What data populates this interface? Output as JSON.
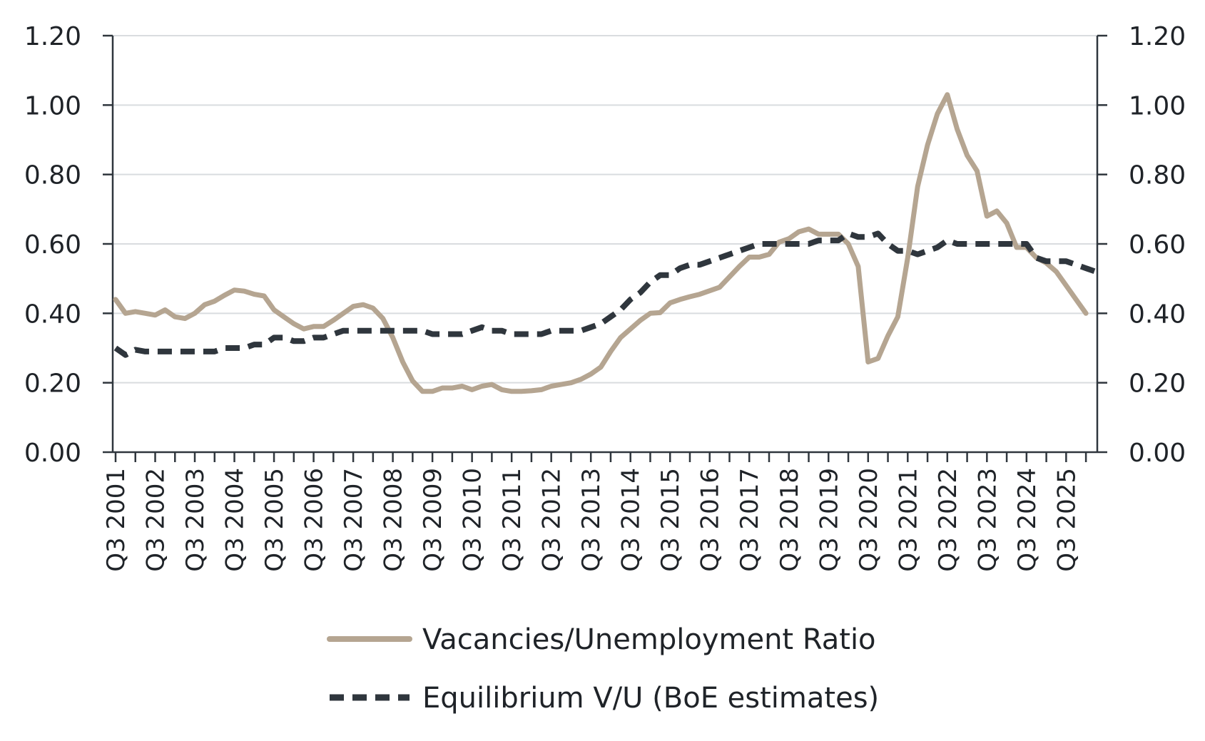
{
  "chart_data": {
    "type": "line",
    "title": "",
    "xlabel": "",
    "ylabel": "",
    "ylim": [
      0,
      1.2
    ],
    "y_ticks": [
      "0.00",
      "0.20",
      "0.40",
      "0.60",
      "0.80",
      "1.00",
      "1.20"
    ],
    "y_tick_values": [
      0,
      0.2,
      0.4,
      0.6,
      0.8,
      1.0,
      1.2
    ],
    "secondary_y_ticks": [
      "0.00",
      "0.20",
      "0.40",
      "0.60",
      "0.80",
      "1.00",
      "1.20"
    ],
    "grid": "horizontal",
    "legend_position": "bottom-center",
    "x_tick_labels": [
      "Q3 2001",
      "Q3 2002",
      "Q3 2003",
      "Q3 2004",
      "Q3 2005",
      "Q3 2006",
      "Q3 2007",
      "Q3 2008",
      "Q3 2009",
      "Q3 2010",
      "Q3 2011",
      "Q3 2012",
      "Q3 2013",
      "Q3 2014",
      "Q3 2015",
      "Q3 2016",
      "Q3 2017",
      "Q3 2018",
      "Q3 2019",
      "Q3 2020",
      "Q3 2021",
      "Q3 2022",
      "Q3 2023",
      "Q3 2024",
      "Q3 2025"
    ],
    "series": [
      {
        "name": "Vacancies/Unemployment Ratio",
        "color": "#b5a591",
        "style": "solid",
        "values": [
          0.44,
          0.4,
          0.405,
          0.4,
          0.395,
          0.41,
          0.39,
          0.385,
          0.4,
          0.425,
          0.435,
          0.452,
          0.467,
          0.464,
          0.455,
          0.45,
          0.41,
          0.39,
          0.37,
          0.355,
          0.362,
          0.362,
          0.38,
          0.4,
          0.42,
          0.425,
          0.415,
          0.385,
          0.33,
          0.26,
          0.205,
          0.175,
          0.175,
          0.185,
          0.185,
          0.19,
          0.18,
          0.19,
          0.195,
          0.18,
          0.175,
          0.175,
          0.177,
          0.18,
          0.19,
          0.195,
          0.2,
          0.21,
          0.225,
          0.245,
          0.29,
          0.33,
          0.355,
          0.38,
          0.4,
          0.402,
          0.43,
          0.44,
          0.448,
          0.455,
          0.465,
          0.475,
          0.505,
          0.535,
          0.562,
          0.562,
          0.57,
          0.605,
          0.615,
          0.635,
          0.643,
          0.628,
          0.628,
          0.628,
          0.6,
          0.535,
          0.26,
          0.27,
          0.335,
          0.39,
          0.56,
          0.765,
          0.885,
          0.975,
          1.03,
          0.93,
          0.855,
          0.81,
          0.68,
          0.695,
          0.66,
          0.59,
          0.59,
          0.56,
          0.545,
          0.52,
          0.48,
          0.44,
          0.4,
          null
        ]
      },
      {
        "name": "Equilibrium V/U (BoE estimates)",
        "color": "#2f363d",
        "style": "dashed",
        "values": [
          0.3,
          0.28,
          0.295,
          0.29,
          0.29,
          0.29,
          0.29,
          0.29,
          0.29,
          0.29,
          0.29,
          0.3,
          0.3,
          0.3,
          0.31,
          0.31,
          0.33,
          0.33,
          0.32,
          0.32,
          0.33,
          0.33,
          0.34,
          0.35,
          0.35,
          0.35,
          0.35,
          0.35,
          0.35,
          0.35,
          0.35,
          0.35,
          0.34,
          0.34,
          0.34,
          0.34,
          0.35,
          0.36,
          0.35,
          0.35,
          0.34,
          0.34,
          0.34,
          0.34,
          0.35,
          0.35,
          0.35,
          0.35,
          0.36,
          0.37,
          0.39,
          0.41,
          0.44,
          0.46,
          0.49,
          0.51,
          0.51,
          0.53,
          0.54,
          0.54,
          0.55,
          0.56,
          0.57,
          0.58,
          0.59,
          0.6,
          0.6,
          0.6,
          0.6,
          0.6,
          0.6,
          0.61,
          0.61,
          0.61,
          0.63,
          0.62,
          0.62,
          0.63,
          0.6,
          0.58,
          0.58,
          0.57,
          0.58,
          0.59,
          0.61,
          0.6,
          0.6,
          0.6,
          0.6,
          0.6,
          0.6,
          0.6,
          0.6,
          0.56,
          0.55,
          0.55,
          0.55,
          0.54,
          0.53,
          0.52
        ]
      }
    ]
  }
}
